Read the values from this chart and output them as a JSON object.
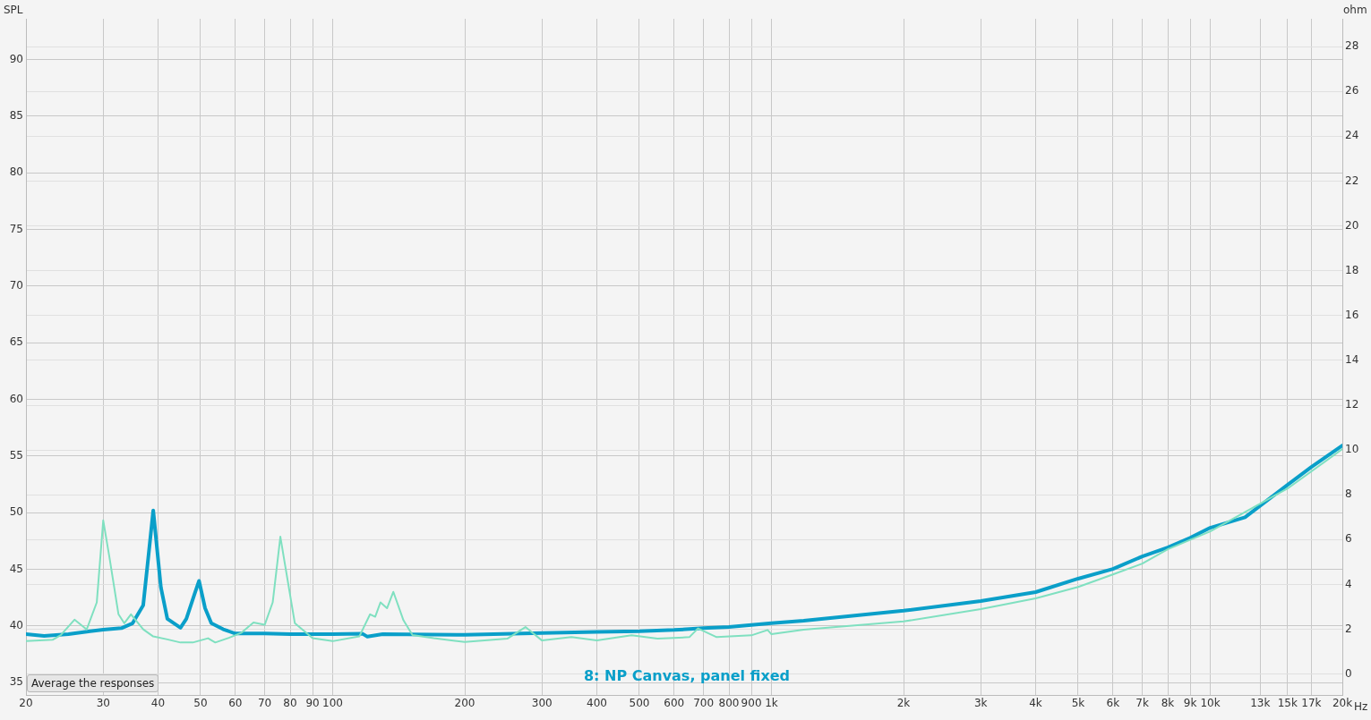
{
  "chart_data": {
    "type": "line",
    "ylabel": "SPL",
    "y2label": "ohm",
    "xlabel": "Hz",
    "log": "x",
    "grid": true,
    "legend": false,
    "marker": "none",
    "line_style": "solid",
    "annotations": [
      "Average the responses"
    ],
    "xlim": [
      20,
      20000
    ],
    "ylim": [
      33.9,
      93.6
    ],
    "y2lim": [
      -0.93,
      29.24
    ],
    "xticks": [
      20,
      30,
      40,
      50,
      60,
      70,
      80,
      90,
      100,
      200,
      300,
      400,
      500,
      600,
      700,
      800,
      900,
      {
        "value": 1000,
        "label": "1k"
      },
      {
        "value": 2000,
        "label": "2k"
      },
      {
        "value": 3000,
        "label": "3k"
      },
      {
        "value": 4000,
        "label": "4k"
      },
      {
        "value": 5000,
        "label": "5k"
      },
      {
        "value": 6000,
        "label": "6k"
      },
      {
        "value": 7000,
        "label": "7k"
      },
      {
        "value": 8000,
        "label": "8k"
      },
      {
        "value": 9000,
        "label": "9k"
      },
      {
        "value": 10000,
        "label": "10k"
      },
      {
        "value": 13000,
        "label": "13k"
      },
      {
        "value": 15000,
        "label": "15k"
      },
      {
        "value": 17000,
        "label": "17k"
      },
      {
        "value": 20000,
        "label": "20k"
      }
    ],
    "yticks": [
      35,
      40,
      45,
      50,
      55,
      60,
      65,
      70,
      75,
      80,
      85,
      90
    ],
    "y2ticks": [
      0,
      2,
      4,
      6,
      8,
      10,
      12,
      14,
      16,
      18,
      20,
      22,
      24,
      26,
      28
    ],
    "series": [
      {
        "name": "8: NP Canvas, panel fixed",
        "color": "#0a9fc9",
        "axis": "y2",
        "x": [
          20,
          22,
          25,
          28,
          30,
          33,
          35,
          37,
          38,
          39,
          40.6,
          42,
          45,
          46.4,
          48.5,
          49.6,
          51.2,
          52.9,
          56.3,
          60,
          70,
          80,
          100,
          117,
          120,
          130,
          200,
          300,
          400,
          500,
          600,
          700,
          800,
          900,
          1000,
          1184,
          2000,
          3000,
          4000,
          5000,
          6000,
          7000,
          8000,
          9000,
          10000,
          12000,
          15000,
          17000,
          20000
        ],
        "values": [
          1.78,
          1.7,
          1.78,
          1.91,
          1.98,
          2.05,
          2.27,
          3.07,
          5.2,
          7.3,
          3.87,
          2.47,
          2.07,
          2.47,
          3.6,
          4.16,
          2.94,
          2.27,
          2.0,
          1.81,
          1.81,
          1.78,
          1.78,
          1.8,
          1.67,
          1.78,
          1.75,
          1.83,
          1.88,
          1.91,
          1.97,
          2.05,
          2.1,
          2.19,
          2.27,
          2.38,
          2.83,
          3.26,
          3.66,
          4.26,
          4.69,
          5.25,
          5.65,
          6.08,
          6.53,
          7.0,
          8.44,
          9.24,
          10.2
        ]
      },
      {
        "color": "#7fe0c0",
        "axis": "y2",
        "x": [
          20,
          23,
          24,
          25.8,
          27.5,
          29,
          30,
          31,
          32.5,
          33.5,
          34.7,
          37,
          39,
          42,
          45,
          48,
          52,
          54,
          58,
          62,
          66,
          70,
          73,
          76,
          78,
          82,
          90,
          100,
          115,
          121.7,
          125,
          128.5,
          133,
          137.5,
          145,
          152,
          170,
          200,
          250,
          275,
          300,
          350,
          400,
          480,
          550,
          650,
          680,
          750,
          900,
          980,
          1000,
          1184,
          2000,
          3000,
          4000,
          5000,
          6000,
          7000,
          8000,
          10000,
          15000,
          20000
        ],
        "values": [
          1.47,
          1.53,
          1.74,
          2.43,
          1.99,
          3.2,
          6.86,
          5.2,
          2.67,
          2.27,
          2.67,
          2.0,
          1.68,
          1.55,
          1.41,
          1.41,
          1.6,
          1.41,
          1.62,
          1.85,
          2.3,
          2.2,
          3.2,
          6.13,
          4.8,
          2.27,
          1.6,
          1.47,
          1.68,
          2.67,
          2.56,
          3.2,
          2.94,
          3.67,
          2.4,
          1.74,
          1.6,
          1.43,
          1.58,
          2.1,
          1.5,
          1.65,
          1.5,
          1.73,
          1.58,
          1.65,
          2.04,
          1.65,
          1.73,
          1.97,
          1.78,
          1.98,
          2.35,
          2.9,
          3.38,
          3.89,
          4.45,
          4.93,
          5.57,
          6.37,
          8.28,
          10.04
        ]
      }
    ]
  }
}
